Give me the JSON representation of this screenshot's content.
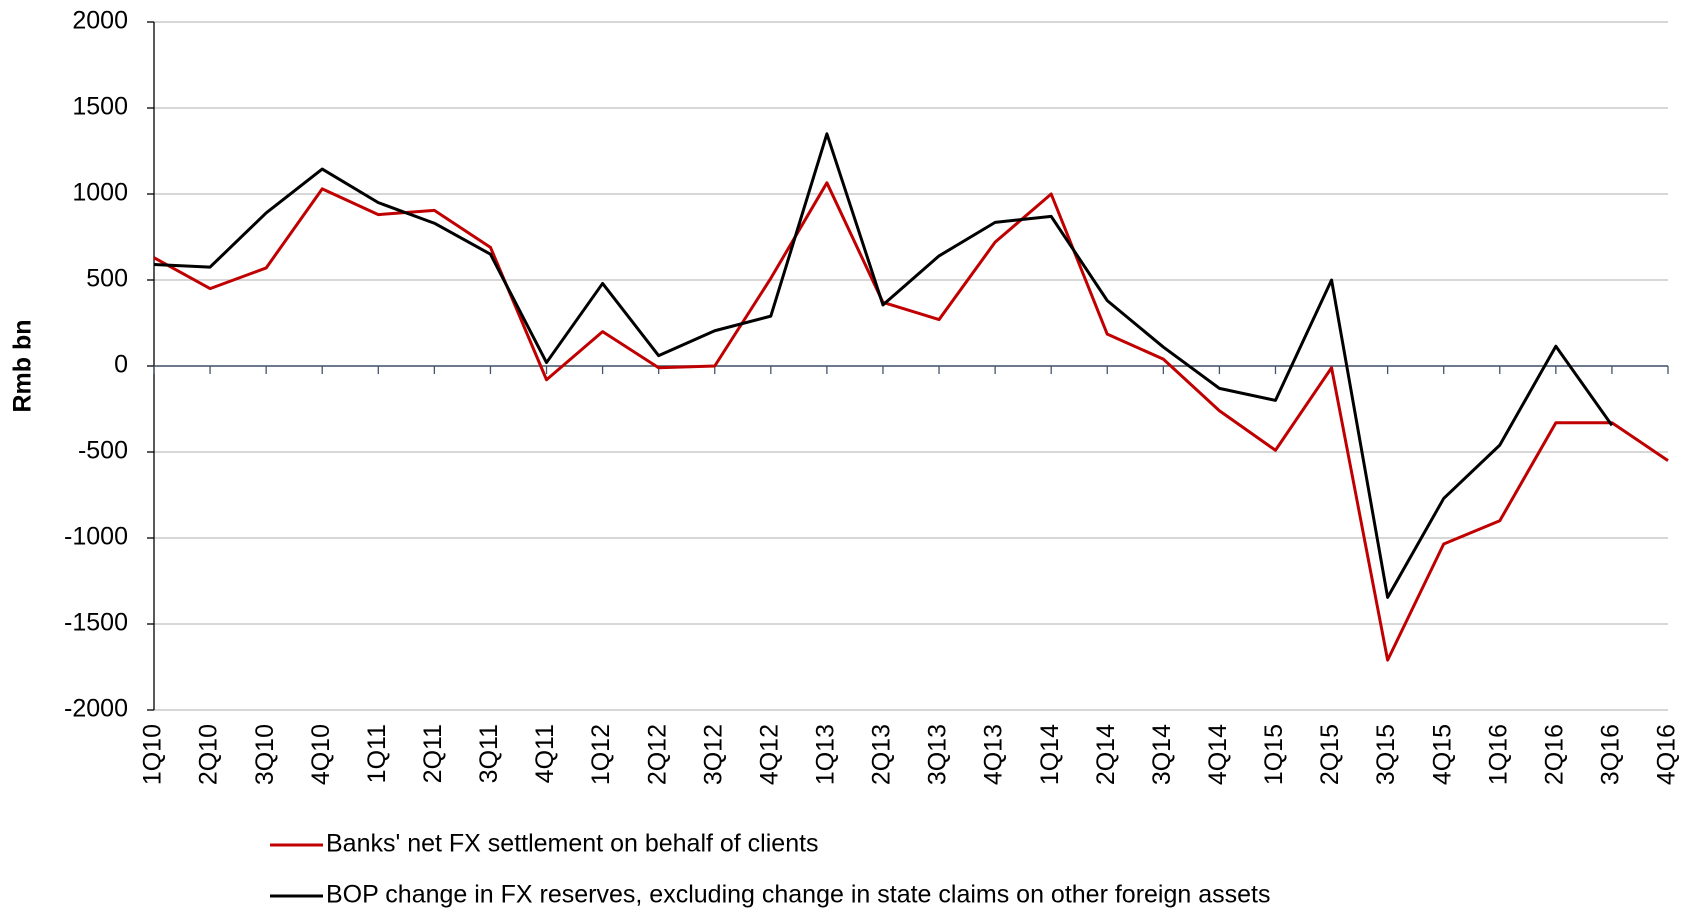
{
  "chart_data": {
    "type": "line",
    "y_label": "Rmb  bn",
    "categories": [
      "1Q10",
      "2Q10",
      "3Q10",
      "4Q10",
      "1Q11",
      "2Q11",
      "3Q11",
      "4Q11",
      "1Q12",
      "2Q12",
      "3Q12",
      "4Q12",
      "1Q13",
      "2Q13",
      "3Q13",
      "4Q13",
      "1Q14",
      "2Q14",
      "3Q14",
      "4Q14",
      "1Q15",
      "2Q15",
      "3Q15",
      "4Q15",
      "1Q16",
      "2Q16",
      "3Q16",
      "4Q16"
    ],
    "series": [
      {
        "name": "Banks' net FX settlement on behalf of clients",
        "color": "#c00000",
        "values": [
          630,
          450,
          570,
          1030,
          880,
          905,
          690,
          -80,
          200,
          -10,
          0,
          510,
          1065,
          370,
          270,
          720,
          1000,
          185,
          40,
          -260,
          -490,
          -10,
          -1710,
          -1035,
          -900,
          -330,
          -330,
          -550
        ]
      },
      {
        "name": "BOP change in FX reserves, excluding change in state claims on other foreign assets",
        "color": "#000000",
        "values": [
          590,
          575,
          890,
          1145,
          950,
          830,
          650,
          20,
          480,
          60,
          205,
          290,
          1350,
          355,
          640,
          835,
          870,
          380,
          110,
          -130,
          -200,
          500,
          -1345,
          -770,
          -460,
          115,
          -345,
          null
        ]
      }
    ],
    "ylim": [
      -2000,
      2000
    ],
    "yticks": [
      -2000,
      -1500,
      -1000,
      -500,
      0,
      500,
      1000,
      1500,
      2000
    ],
    "grid": true
  }
}
